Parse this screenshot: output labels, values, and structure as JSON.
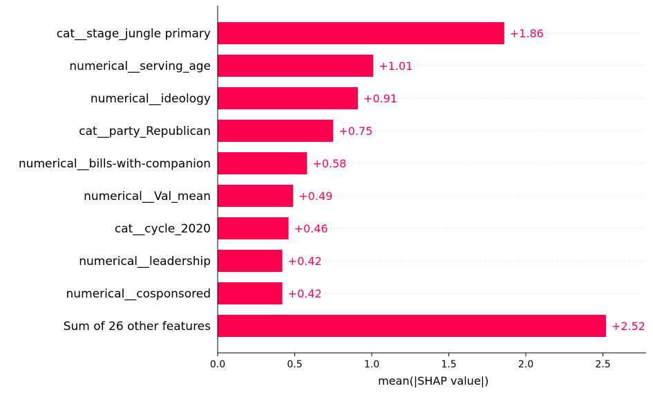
{
  "chart_data": {
    "type": "bar",
    "orientation": "horizontal",
    "categories": [
      "cat__stage_jungle primary",
      "numerical__serving_age",
      "numerical__ideology",
      "cat__party_Republican",
      "numerical__bills-with-companion",
      "numerical__Val_mean",
      "cat__cycle_2020",
      "numerical__leadership",
      "numerical__cosponsored",
      "Sum of 26 other features"
    ],
    "values": [
      1.86,
      1.01,
      0.91,
      0.75,
      0.58,
      0.49,
      0.46,
      0.42,
      0.42,
      2.52
    ],
    "value_labels": [
      "+1.86",
      "+1.01",
      "+0.91",
      "+0.75",
      "+0.58",
      "+0.49",
      "+0.46",
      "+0.42",
      "+0.42",
      "+2.52"
    ],
    "xlabel": "mean(|SHAP value|)",
    "ylabel": "",
    "title": "",
    "xlim": [
      0,
      2.75
    ],
    "xticks": [
      0.0,
      0.5,
      1.0,
      1.5,
      2.0,
      2.5
    ],
    "xtick_labels": [
      "0.0",
      "0.5",
      "1.0",
      "1.5",
      "2.0",
      "2.5"
    ],
    "grid": "dotted horizontal lines per row",
    "colors": {
      "bar": "#ff0051",
      "label": "#ff0051",
      "axis": "#000000",
      "grid": "#cccccc"
    }
  }
}
